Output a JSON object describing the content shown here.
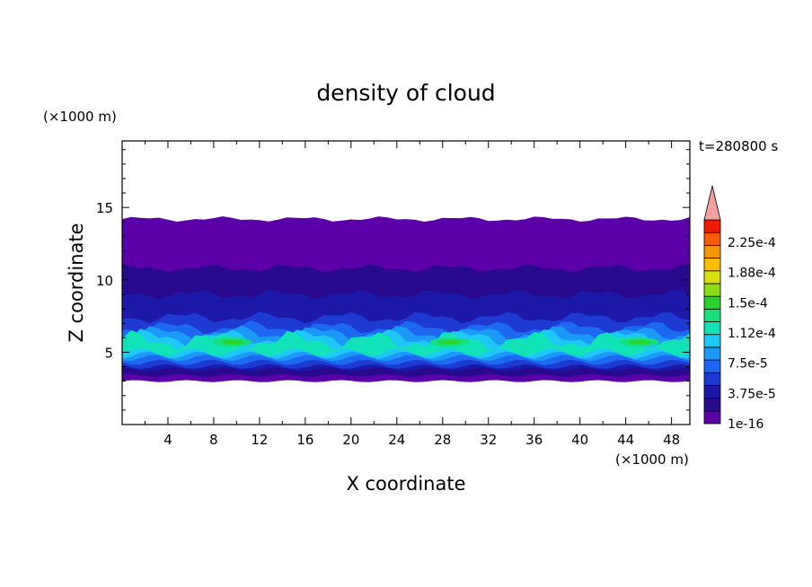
{
  "chart_data": {
    "type": "heatmap",
    "title": "density of cloud",
    "xlabel": "X coordinate",
    "ylabel": "Z coordinate",
    "x_unit": "(×1000 m)",
    "y_unit": "(×1000 m)",
    "time_label": "t=280800 s",
    "xlim": [
      0,
      49.6
    ],
    "ylim": [
      0,
      19.6
    ],
    "x_ticks": [
      4,
      8,
      12,
      16,
      20,
      24,
      28,
      32,
      36,
      40,
      44,
      48
    ],
    "x_tick_labels": [
      "4",
      "8",
      "12",
      "16",
      "20",
      "24",
      "28",
      "32",
      "36",
      "40",
      "44",
      "48"
    ],
    "y_ticks": [
      5,
      10,
      15
    ],
    "y_tick_labels": [
      "5",
      "10",
      "15"
    ],
    "colorbar": {
      "labels": [
        "2.25e-4",
        "1.88e-4",
        "1.5e-4",
        "1.12e-4",
        "7.5e-5",
        "3.75e-5",
        "1e-16"
      ],
      "colors": [
        "#5b00a8",
        "#2a0a8c",
        "#1c18a8",
        "#1f3ad2",
        "#1d68f0",
        "#1c98f6",
        "#1ec8f6",
        "#12e2b8",
        "#14e07a",
        "#2cd22c",
        "#8cdc14",
        "#dce010",
        "#f8c000",
        "#f89400",
        "#f85c00",
        "#f01a00"
      ],
      "extend_color": "#f4a0a0"
    },
    "cloud_layers": [
      {
        "level": 0,
        "z_bottom": 3.0,
        "z_top": 14.2
      },
      {
        "level": 1,
        "z_bottom": 3.4,
        "z_top": 10.8
      },
      {
        "level": 2,
        "z_bottom": 3.8,
        "z_top": 9.0
      },
      {
        "level": 3,
        "z_bottom": 4.0,
        "z_top": 7.4
      },
      {
        "level": 4,
        "z_bottom": 4.3,
        "z_top": 6.7
      },
      {
        "level": 5,
        "z_bottom": 4.6,
        "z_top": 6.3
      },
      {
        "level": 6,
        "z_bottom": 4.8,
        "z_top": 6.0
      },
      {
        "level": 7,
        "z_bottom": 5.0,
        "z_top": 5.8
      }
    ],
    "peak_cores": [
      {
        "x": 9.6,
        "z": 5.7,
        "level": 9
      },
      {
        "x": 28.6,
        "z": 5.7,
        "level": 9
      },
      {
        "x": 45.2,
        "z": 5.7,
        "level": 9
      }
    ]
  }
}
